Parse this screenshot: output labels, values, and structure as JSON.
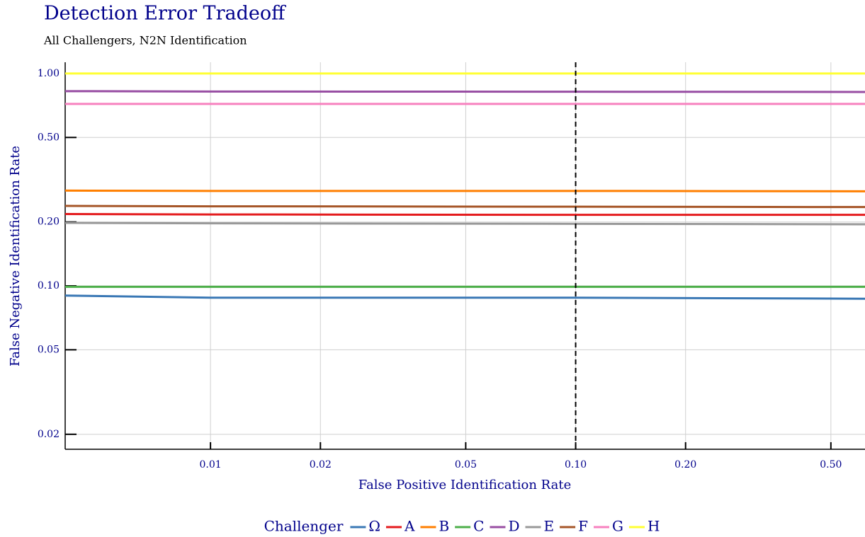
{
  "chart_data": {
    "type": "line",
    "title": "Detection Error Tradeoff",
    "subtitle": "All Challengers, N2N Identification",
    "x_label": "False Positive Identification Rate",
    "y_label": "False Negative Identification Rate",
    "legend_title": "Challenger",
    "legend_position": "bottom",
    "xscale": "log",
    "yscale": "log",
    "grid": true,
    "xlim": [
      0.004,
      0.62
    ],
    "ylim": [
      0.017,
      1.13
    ],
    "xticks": [
      0.01,
      0.02,
      0.05,
      {
        "value": 0.1,
        "label": "0.10"
      },
      {
        "value": 0.2,
        "label": "0.20"
      },
      {
        "value": 0.5,
        "label": "0.50"
      }
    ],
    "yticks": [
      0.02,
      0.05,
      {
        "value": 0.1,
        "label": "0.10"
      },
      {
        "value": 0.2,
        "label": "0.20"
      },
      {
        "value": 0.5,
        "label": "0.50"
      },
      {
        "value": 1,
        "label": "1.00"
      }
    ],
    "threshold_x": 0.1,
    "x": [
      0.004,
      0.01,
      0.1,
      0.62
    ],
    "series": [
      {
        "name": "Ω",
        "color": "#3a78b5",
        "values": [
          0.09,
          0.088,
          0.088,
          0.087
        ]
      },
      {
        "name": "A",
        "color": "#e41a1c",
        "values": [
          0.218,
          0.217,
          0.216,
          0.216
        ]
      },
      {
        "name": "B",
        "color": "#ff7f00",
        "values": [
          0.281,
          0.28,
          0.28,
          0.279
        ]
      },
      {
        "name": "C",
        "color": "#4daf4a",
        "values": [
          0.099,
          0.099,
          0.099,
          0.099
        ]
      },
      {
        "name": "D",
        "color": "#984ea3",
        "values": [
          0.826,
          0.823,
          0.821,
          0.819
        ]
      },
      {
        "name": "E",
        "color": "#999999",
        "values": [
          0.198,
          0.197,
          0.196,
          0.195
        ]
      },
      {
        "name": "F",
        "color": "#a65628",
        "values": [
          0.238,
          0.237,
          0.236,
          0.235
        ]
      },
      {
        "name": "G",
        "color": "#f781bf",
        "values": [
          0.719,
          0.719,
          0.719,
          0.719
        ]
      },
      {
        "name": "H",
        "color": "#ffff33",
        "values": [
          1,
          1,
          1,
          1
        ]
      }
    ]
  }
}
